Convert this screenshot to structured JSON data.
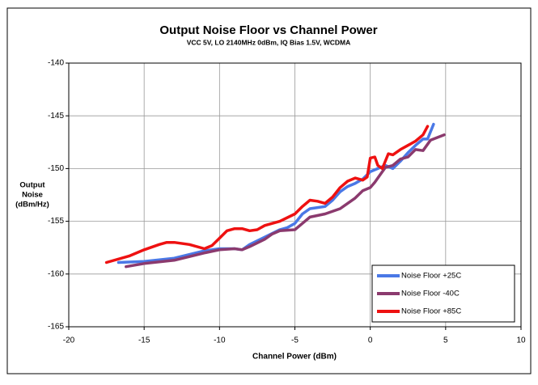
{
  "chart_data": {
    "type": "line",
    "title": "Output Noise Floor vs Channel Power",
    "subtitle": "VCC 5V, LO 2140MHz 0dBm, IQ Bias 1.5V, WCDMA",
    "x_label": "Channel Power (dBm)",
    "y_label": [
      "Output",
      "Noise",
      "(dBm/Hz)"
    ],
    "xlim": [
      -20,
      10
    ],
    "xticks": [
      -20,
      -15,
      -10,
      -5,
      0,
      5,
      10
    ],
    "ylim": [
      -165,
      -140
    ],
    "yticks": [
      -140,
      -145,
      -150,
      -155,
      -160,
      -165
    ],
    "grid": true,
    "legend": "lower right",
    "series": [
      {
        "name": "Noise Floor +25C",
        "color": "#4a78e6",
        "x": [
          -16.7,
          -15,
          -13,
          -11,
          -10,
          -9,
          -8.5,
          -8,
          -7,
          -6,
          -5.5,
          -5,
          -4.5,
          -4,
          -3,
          -2.5,
          -2,
          -1.5,
          -1,
          -0.5,
          0,
          0.5,
          1,
          1.5,
          2,
          2.5,
          3,
          3.5,
          3.8,
          4.2
        ],
        "values": [
          -158.9,
          -158.8,
          -158.5,
          -157.8,
          -157.6,
          -157.6,
          -157.7,
          -157.2,
          -156.5,
          -155.8,
          -155.6,
          -155.2,
          -154.3,
          -153.8,
          -153.6,
          -153.0,
          -152.2,
          -151.7,
          -151.4,
          -151.0,
          -150.3,
          -150.0,
          -149.7,
          -150.0,
          -149.3,
          -148.5,
          -147.8,
          -147.2,
          -147.2,
          -145.8
        ]
      },
      {
        "name": "Noise Floor -40C",
        "color": "#8b3a6e",
        "x": [
          -16.2,
          -15,
          -13,
          -11,
          -10,
          -9,
          -8.5,
          -8,
          -7,
          -6.5,
          -6,
          -5,
          -4.5,
          -4,
          -3,
          -2,
          -1,
          -0.5,
          0,
          0.3,
          0.7,
          1,
          1.5,
          2,
          2.5,
          3,
          3.5,
          4,
          4.9
        ],
        "values": [
          -159.3,
          -159.0,
          -158.7,
          -158.0,
          -157.7,
          -157.6,
          -157.7,
          -157.4,
          -156.7,
          -156.2,
          -155.9,
          -155.8,
          -155.2,
          -154.6,
          -154.3,
          -153.8,
          -152.8,
          -152.1,
          -151.8,
          -151.3,
          -150.5,
          -149.9,
          -149.7,
          -149.1,
          -148.9,
          -148.2,
          -148.3,
          -147.3,
          -146.8
        ]
      },
      {
        "name": "Noise Floor +85C",
        "color": "#ee1111",
        "x": [
          -17.5,
          -16,
          -15,
          -14,
          -13.5,
          -13,
          -12,
          -11,
          -10.5,
          -10,
          -9.5,
          -9,
          -8.5,
          -8,
          -7.5,
          -7,
          -6,
          -5,
          -4.5,
          -4,
          -3.5,
          -3,
          -2.5,
          -2,
          -1.5,
          -1,
          -0.5,
          -0.2,
          0,
          0.3,
          0.5,
          0.8,
          1.2,
          1.5,
          2,
          2.5,
          3,
          3.5,
          3.8
        ],
        "values": [
          -158.9,
          -158.3,
          -157.7,
          -157.2,
          -157.0,
          -157.0,
          -157.2,
          -157.6,
          -157.3,
          -156.6,
          -155.9,
          -155.7,
          -155.7,
          -155.9,
          -155.8,
          -155.4,
          -155.0,
          -154.3,
          -153.6,
          -153.0,
          -153.1,
          -153.3,
          -152.7,
          -151.8,
          -151.2,
          -150.9,
          -151.1,
          -150.8,
          -149.0,
          -148.9,
          -149.7,
          -150.0,
          -148.6,
          -148.7,
          -148.2,
          -147.8,
          -147.4,
          -146.8,
          -146.0
        ]
      }
    ]
  }
}
